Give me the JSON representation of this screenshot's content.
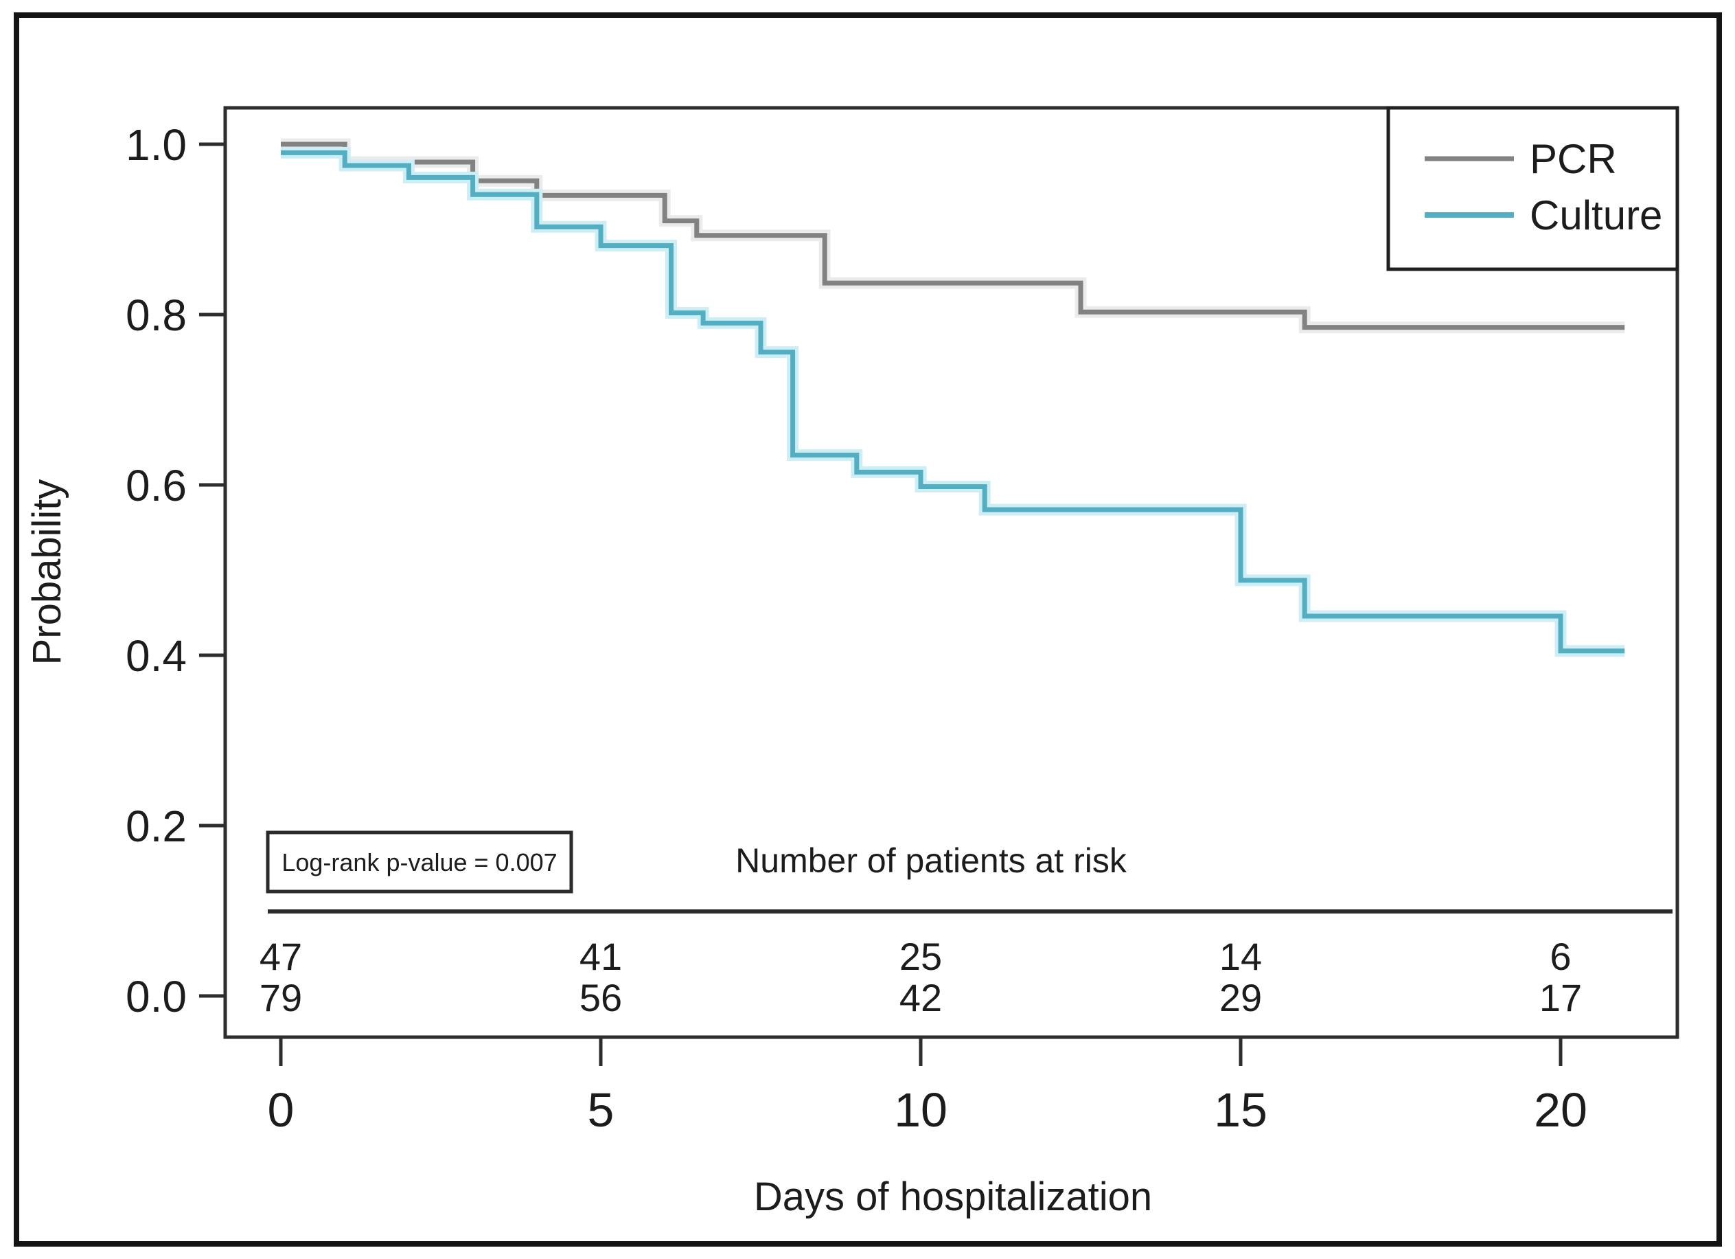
{
  "chart_data": {
    "type": "line",
    "subtype": "kaplan-meier-step",
    "title": "",
    "xlabel": "Days of hospitalization",
    "ylabel": "Probability",
    "xlim": [
      0,
      21.8
    ],
    "ylim": [
      0,
      1.05
    ],
    "x_ticks": [
      0,
      5,
      10,
      15,
      20
    ],
    "y_ticks": [
      1.0,
      0.8,
      0.6,
      0.4,
      0.2,
      0.0
    ],
    "grid": false,
    "legend_position": "top-right-inside",
    "annotation": "Log-rank p-value = 0.007",
    "series": [
      {
        "name": "PCR",
        "color": "#828282",
        "halo_color": "#ebebeb",
        "points": [
          [
            0,
            1.0
          ],
          [
            1,
            0.979
          ],
          [
            3,
            0.957
          ],
          [
            4,
            0.94
          ],
          [
            6,
            0.91
          ],
          [
            6.5,
            0.893
          ],
          [
            8.5,
            0.837
          ],
          [
            12.5,
            0.803
          ],
          [
            16,
            0.785
          ],
          [
            21,
            0.785
          ]
        ]
      },
      {
        "name": "Culture",
        "color": "#54aec2",
        "halo_color": "#cdeef5",
        "points": [
          [
            0,
            0.99
          ],
          [
            1,
            0.975
          ],
          [
            2,
            0.961
          ],
          [
            3,
            0.941
          ],
          [
            4,
            0.903
          ],
          [
            5,
            0.881
          ],
          [
            6.1,
            0.802
          ],
          [
            6.6,
            0.79
          ],
          [
            7.5,
            0.756
          ],
          [
            8,
            0.635
          ],
          [
            9,
            0.615
          ],
          [
            10,
            0.598
          ],
          [
            11,
            0.571
          ],
          [
            15,
            0.488
          ],
          [
            16,
            0.446
          ],
          [
            20,
            0.405
          ],
          [
            21,
            0.405
          ]
        ]
      }
    ],
    "risk_table": {
      "title": "Number of patients at risk",
      "times": [
        0,
        5,
        10,
        15,
        20
      ],
      "rows": [
        {
          "name": "PCR",
          "color": "#6a6a6a",
          "counts": [
            47,
            41,
            25,
            14,
            6
          ]
        },
        {
          "name": "Culture",
          "color": "#58aec3",
          "counts": [
            79,
            56,
            42,
            29,
            17
          ]
        }
      ]
    }
  },
  "colors": {
    "axis": "#2d2d2d",
    "frame": "#141414",
    "legend_border": "#1f1f1f",
    "annotation_border": "#2b2b2b",
    "tick_text": "#1c1c1c"
  }
}
